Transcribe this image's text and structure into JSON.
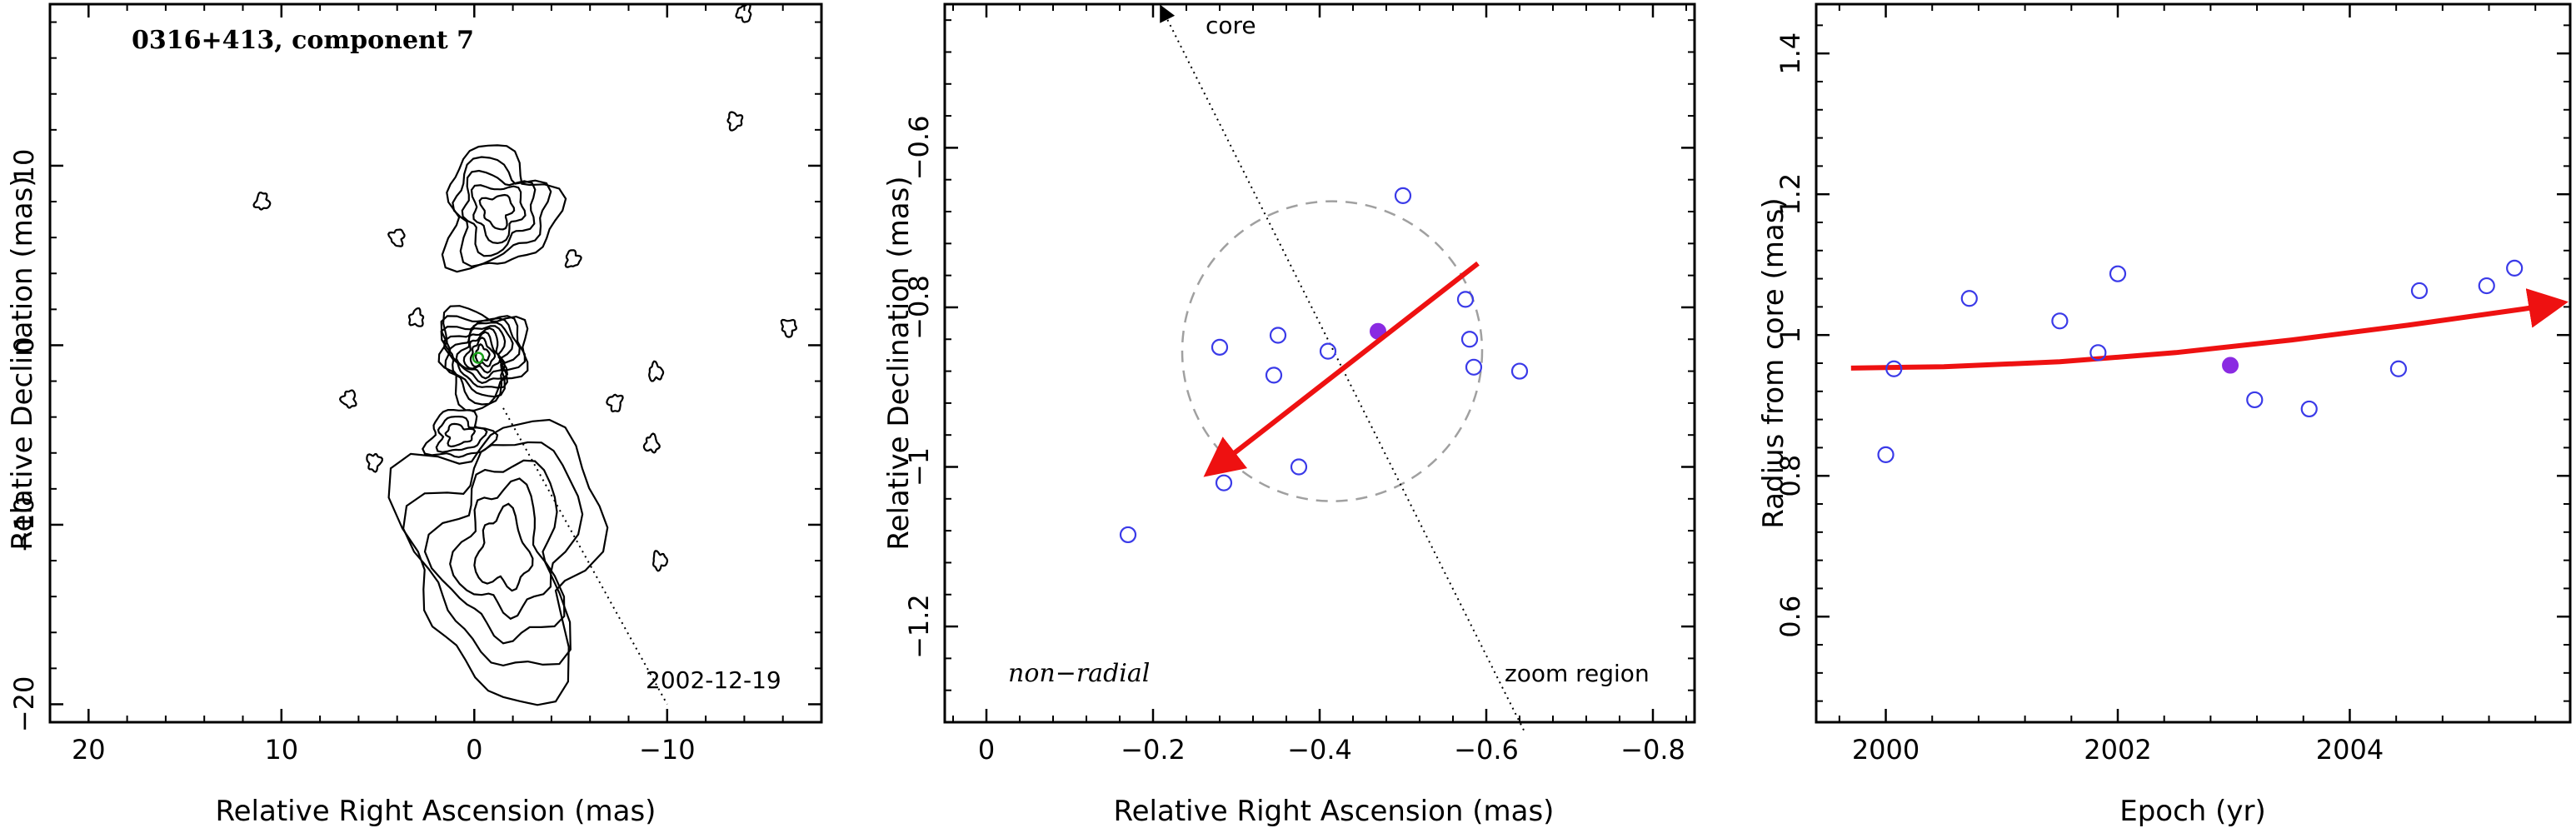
{
  "colors": {
    "data_point": "#3a3ae8",
    "highlight_point": "#8a2be2",
    "arrow": "#ee1111",
    "zoom_circle": "#a0a0a0",
    "contour": "#000000",
    "frame": "#000000"
  },
  "chart_data": [
    {
      "type": "contour",
      "title": "0316+413, component 7",
      "xlabel": "Relative Right Ascension (mas)",
      "ylabel": "Relative Declination (mas)",
      "xlim": [
        22,
        -18
      ],
      "ylim": [
        -21,
        19
      ],
      "x_ticks": [
        20,
        10,
        0,
        -10
      ],
      "y_ticks": [
        10,
        0,
        -10,
        -20
      ],
      "x_tick_labels": [
        "20",
        "10",
        "0",
        "−10"
      ],
      "y_tick_labels": [
        "10",
        "0",
        "−10",
        "−20"
      ],
      "epoch_label": "2002-12-19",
      "jet_direction_line": {
        "from": [
          -1.5,
          -3.5
        ],
        "to": [
          -10,
          -20
        ]
      },
      "grid": false
    },
    {
      "type": "scatter",
      "xlabel": "Relative Right Ascension (mas)",
      "ylabel": "Relative Declination (mas)",
      "xlim": [
        0.05,
        -0.85
      ],
      "ylim": [
        -1.32,
        -0.42
      ],
      "x_ticks": [
        0,
        -0.2,
        -0.4,
        -0.6,
        -0.8
      ],
      "y_ticks": [
        -0.6,
        -0.8,
        -1.0,
        -1.2
      ],
      "x_tick_labels": [
        "0",
        "−0.2",
        "−0.4",
        "−0.6",
        "−0.8"
      ],
      "y_tick_labels": [
        "−0.6",
        "−0.8",
        "−1",
        "−1.2"
      ],
      "points": [
        {
          "x": -0.17,
          "y": -1.085
        },
        {
          "x": -0.28,
          "y": -0.85
        },
        {
          "x": -0.285,
          "y": -1.02
        },
        {
          "x": -0.345,
          "y": -0.885
        },
        {
          "x": -0.35,
          "y": -0.835
        },
        {
          "x": -0.375,
          "y": -1.0
        },
        {
          "x": -0.41,
          "y": -0.855
        },
        {
          "x": -0.5,
          "y": -0.66
        },
        {
          "x": -0.575,
          "y": -0.79
        },
        {
          "x": -0.58,
          "y": -0.84
        },
        {
          "x": -0.585,
          "y": -0.875
        },
        {
          "x": -0.64,
          "y": -0.88
        }
      ],
      "highlight_point": {
        "x": -0.47,
        "y": -0.83
      },
      "motion_vector": {
        "from": [
          -0.59,
          -0.745
        ],
        "to": [
          -0.27,
          -1.005
        ]
      },
      "zoom_circle": {
        "center": [
          -0.415,
          -0.855
        ],
        "radius": 0.18
      },
      "core_line": {
        "from": [
          -0.645,
          -1.33
        ],
        "to": [
          -0.21,
          -0.42
        ]
      },
      "labels": {
        "core": "core",
        "zoom_region": "zoom region",
        "motion_type": "non−radial"
      },
      "grid": false
    },
    {
      "type": "scatter",
      "xlabel": "Epoch (yr)",
      "ylabel": "Radius from core (mas)",
      "xlim": [
        1999.4,
        2005.9
      ],
      "ylim": [
        0.45,
        1.47
      ],
      "x_ticks": [
        2000,
        2002,
        2004
      ],
      "y_ticks": [
        0.6,
        0.8,
        1.0,
        1.2,
        1.4
      ],
      "x_tick_labels": [
        "2000",
        "2002",
        "2004"
      ],
      "y_tick_labels": [
        "0.6",
        "0.8",
        "1",
        "1.2",
        "1.4"
      ],
      "points": [
        {
          "x": 2000.0,
          "y": 0.83
        },
        {
          "x": 2000.07,
          "y": 0.952
        },
        {
          "x": 2000.72,
          "y": 1.052
        },
        {
          "x": 2001.5,
          "y": 1.02
        },
        {
          "x": 2001.83,
          "y": 0.975
        },
        {
          "x": 2002.0,
          "y": 1.087
        },
        {
          "x": 2003.18,
          "y": 0.908
        },
        {
          "x": 2003.65,
          "y": 0.895
        },
        {
          "x": 2004.42,
          "y": 0.952
        },
        {
          "x": 2004.6,
          "y": 1.063
        },
        {
          "x": 2005.18,
          "y": 1.07
        },
        {
          "x": 2005.42,
          "y": 1.095
        }
      ],
      "highlight_point": {
        "x": 2002.97,
        "y": 0.957
      },
      "fit_curve": {
        "x": [
          1999.7,
          2000.5,
          2001.5,
          2002.5,
          2003.5,
          2004.5,
          2005.5,
          2005.8
        ],
        "y": [
          0.953,
          0.955,
          0.962,
          0.975,
          0.993,
          1.014,
          1.037,
          1.045
        ]
      },
      "grid": false
    }
  ]
}
